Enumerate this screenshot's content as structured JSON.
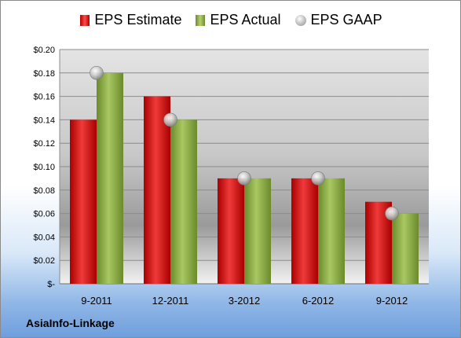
{
  "chart_data": {
    "type": "bar",
    "categories": [
      "9-2011",
      "12-2011",
      "3-2012",
      "6-2012",
      "9-2012"
    ],
    "series": [
      {
        "name": "EPS Estimate",
        "kind": "bar",
        "color": "#cc1f1f",
        "values": [
          0.14,
          0.16,
          0.09,
          0.09,
          0.07
        ]
      },
      {
        "name": "EPS Actual",
        "kind": "bar",
        "color": "#8fae45",
        "values": [
          0.18,
          0.14,
          0.09,
          0.09,
          0.06
        ]
      },
      {
        "name": "EPS GAAP",
        "kind": "marker",
        "color": "#b0b0b0",
        "values": [
          0.18,
          0.14,
          0.09,
          0.09,
          0.06
        ]
      }
    ],
    "ylim": [
      0,
      0.2
    ],
    "yticks": [
      0,
      0.02,
      0.04,
      0.06,
      0.08,
      0.1,
      0.12,
      0.14,
      0.16,
      0.18,
      0.2
    ],
    "ytick_labels": [
      "$-",
      "$0.02",
      "$0.04",
      "$0.06",
      "$0.08",
      "$0.10",
      "$0.12",
      "$0.14",
      "$0.16",
      "$0.18",
      "$0.20"
    ],
    "grid": true,
    "legend": "top"
  },
  "company_label": "AsiaInfo-Linkage"
}
